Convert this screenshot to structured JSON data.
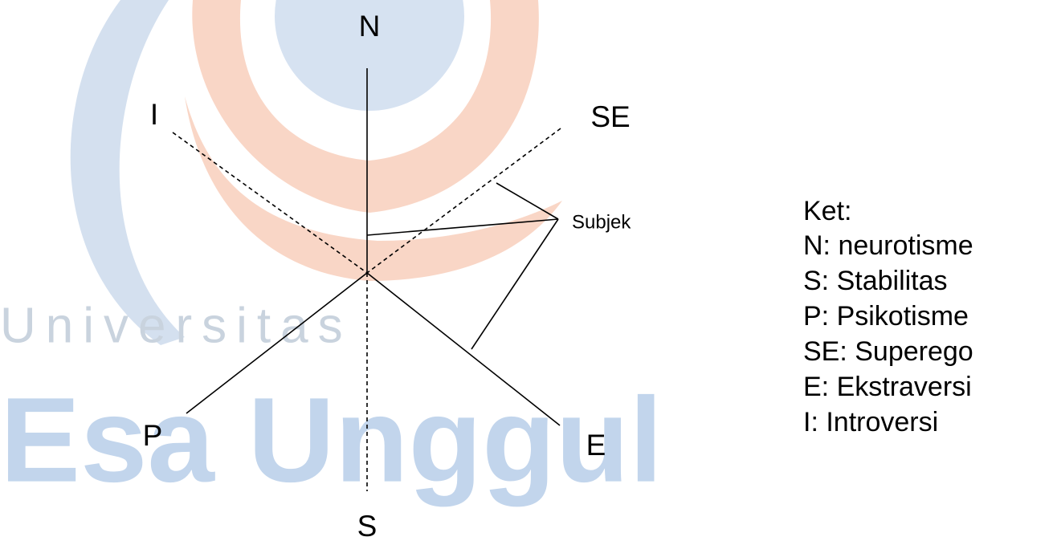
{
  "axes": {
    "n": "N",
    "s": "S",
    "i": "I",
    "se": "SE",
    "p": "P",
    "e": "E"
  },
  "subject": "Subjek",
  "legend": {
    "title": "Ket:",
    "items": [
      "N: neurotisme",
      "S: Stabilitas",
      "P: Psikotisme",
      "SE: Superego",
      "E: Ekstraversi",
      "I: Introversi"
    ]
  },
  "watermark": {
    "line1": "Universitas",
    "line2": "Esa Unggul"
  }
}
